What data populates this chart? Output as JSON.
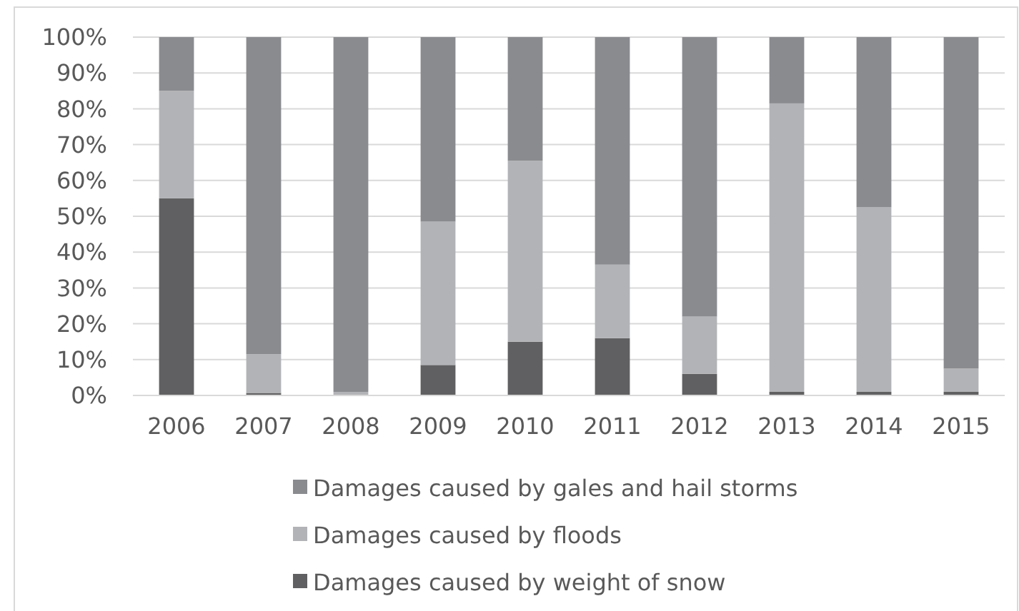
{
  "chart_data": {
    "type": "bar",
    "stacked": true,
    "categories": [
      "2006",
      "2007",
      "2008",
      "2009",
      "2010",
      "2011",
      "2012",
      "2013",
      "2014",
      "2015"
    ],
    "series": [
      {
        "name": "Damages caused by weight of snow",
        "color": "#606062",
        "values": [
          55,
          0.7,
          0,
          8.5,
          15,
          16,
          6,
          1,
          1,
          1
        ]
      },
      {
        "name": "Damages caused by floods",
        "color": "#b2b3b6",
        "values": [
          30,
          10.8,
          1,
          40,
          50.5,
          20.5,
          16,
          80.5,
          51.5,
          6.5
        ]
      },
      {
        "name": "Damages caused by gales and hail storms",
        "color": "#8a8b8f",
        "values": [
          15,
          88.5,
          99,
          51.5,
          34.5,
          63.5,
          78,
          18.5,
          47.5,
          92.5
        ]
      }
    ],
    "ylim": [
      0,
      100
    ],
    "yticks": [
      {
        "value": 0,
        "label": "0%"
      },
      {
        "value": 10,
        "label": "10%"
      },
      {
        "value": 20,
        "label": "20%"
      },
      {
        "value": 30,
        "label": "30%"
      },
      {
        "value": 40,
        "label": "40%"
      },
      {
        "value": 50,
        "label": "50%"
      },
      {
        "value": 60,
        "label": "60%"
      },
      {
        "value": 70,
        "label": "70%"
      },
      {
        "value": 80,
        "label": "80%"
      },
      {
        "value": 90,
        "label": "90%"
      },
      {
        "value": 100,
        "label": "100%"
      }
    ],
    "grid": "y",
    "legend": "bottom"
  }
}
